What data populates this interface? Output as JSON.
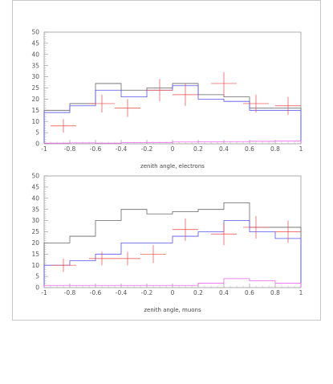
{
  "chart_data": [
    {
      "type": "histogram",
      "xlabel": "zenith angle, electrons",
      "xlim": [
        -1,
        1
      ],
      "ylim": [
        0,
        50
      ],
      "x_ticks": [
        "-1",
        "-0.8",
        "-0.6",
        "-0.4",
        "-0.2",
        "0",
        "0.2",
        "0.4",
        "0.6",
        "0.8",
        "1"
      ],
      "y_ticks": [
        "0",
        "5",
        "10",
        "15",
        "20",
        "25",
        "30",
        "35",
        "40",
        "45",
        "50"
      ],
      "bin_edges": [
        -1,
        -0.8,
        -0.6,
        -0.4,
        -0.2,
        0,
        0.2,
        0.4,
        0.6,
        0.8,
        1
      ],
      "series": [
        {
          "kind": "step",
          "color": "#666666",
          "values": [
            15,
            18,
            27,
            24,
            25,
            27,
            22,
            21,
            16,
            16
          ]
        },
        {
          "kind": "step",
          "color": "#5555ee",
          "values": [
            14,
            17,
            24,
            21,
            24,
            26,
            20,
            19,
            15,
            15
          ]
        },
        {
          "kind": "step",
          "color": "#ee66ee",
          "values": [
            0.3,
            0.4,
            0.3,
            0.5,
            0.6,
            0.8,
            0.9,
            1,
            1.1,
            1.2
          ]
        },
        {
          "kind": "points",
          "color": "#ee4444",
          "points": [
            {
              "x": -0.85,
              "y": 8,
              "xerr": 0.1,
              "yerr": 3
            },
            {
              "x": -0.55,
              "y": 18,
              "xerr": 0.1,
              "yerr": 4
            },
            {
              "x": -0.35,
              "y": 16,
              "xerr": 0.1,
              "yerr": 4
            },
            {
              "x": -0.1,
              "y": 24,
              "xerr": 0.1,
              "yerr": 5
            },
            {
              "x": 0.1,
              "y": 22,
              "xerr": 0.1,
              "yerr": 5
            },
            {
              "x": 0.4,
              "y": 27,
              "xerr": 0.1,
              "yerr": 5
            },
            {
              "x": 0.65,
              "y": 18,
              "xerr": 0.1,
              "yerr": 4
            },
            {
              "x": 0.9,
              "y": 17,
              "xerr": 0.1,
              "yerr": 4
            }
          ]
        }
      ]
    },
    {
      "type": "histogram",
      "xlabel": "zenith angle, muons",
      "xlim": [
        -1,
        1
      ],
      "ylim": [
        0,
        50
      ],
      "x_ticks": [
        "-1",
        "-0.8",
        "-0.6",
        "-0.4",
        "-0.2",
        "0",
        "0.2",
        "0.4",
        "0.6",
        "0.8",
        "1"
      ],
      "y_ticks": [
        "0",
        "5",
        "10",
        "15",
        "20",
        "25",
        "30",
        "35",
        "40",
        "45",
        "50"
      ],
      "bin_edges": [
        -1,
        -0.8,
        -0.6,
        -0.4,
        -0.2,
        0,
        0.2,
        0.4,
        0.6,
        0.8,
        1
      ],
      "series": [
        {
          "kind": "step",
          "color": "#666666",
          "values": [
            20,
            23,
            30,
            35,
            33,
            34,
            35,
            38,
            27,
            27
          ]
        },
        {
          "kind": "step",
          "color": "#5555ee",
          "values": [
            10,
            12,
            15,
            20,
            20,
            23,
            25,
            30,
            25,
            22
          ]
        },
        {
          "kind": "step",
          "color": "#ee66ee",
          "values": [
            1,
            1,
            1,
            1,
            1,
            1,
            2,
            4,
            3,
            2
          ]
        },
        {
          "kind": "points",
          "color": "#ee4444",
          "points": [
            {
              "x": -0.85,
              "y": 10,
              "xerr": 0.1,
              "yerr": 3
            },
            {
              "x": -0.55,
              "y": 13,
              "xerr": 0.1,
              "yerr": 3
            },
            {
              "x": -0.35,
              "y": 13,
              "xerr": 0.1,
              "yerr": 3
            },
            {
              "x": -0.15,
              "y": 15,
              "xerr": 0.1,
              "yerr": 4
            },
            {
              "x": 0.1,
              "y": 26,
              "xerr": 0.1,
              "yerr": 5
            },
            {
              "x": 0.4,
              "y": 24,
              "xerr": 0.1,
              "yerr": 5
            },
            {
              "x": 0.65,
              "y": 27,
              "xerr": 0.1,
              "yerr": 5
            },
            {
              "x": 0.9,
              "y": 25,
              "xerr": 0.1,
              "yerr": 5
            }
          ]
        }
      ]
    }
  ]
}
